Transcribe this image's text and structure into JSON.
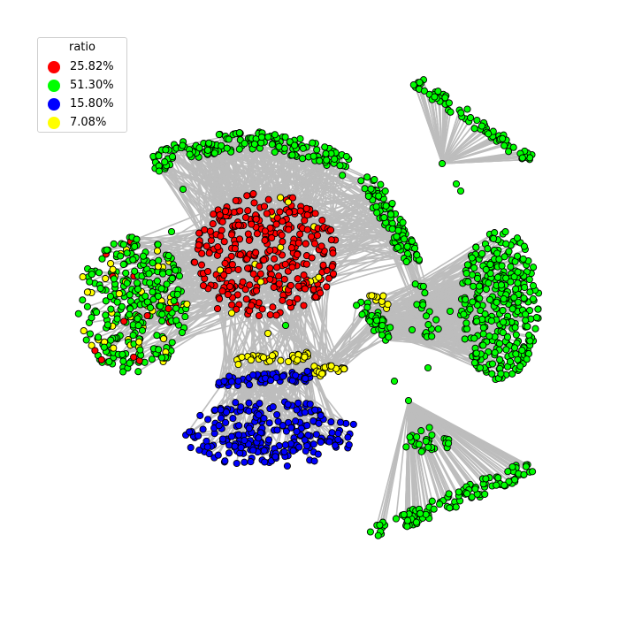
{
  "legend": {
    "title": "ratio",
    "items": [
      {
        "label": "25.82%",
        "color": "#ff0000"
      },
      {
        "label": "51.30%",
        "color": "#00ff00"
      },
      {
        "label": "15.80%",
        "color": "#0000ff"
      },
      {
        "label": "7.08%",
        "color": "#ffff00"
      }
    ]
  },
  "style": {
    "edge_color": "#bdbdbd",
    "node_stroke": "#000000"
  }
}
